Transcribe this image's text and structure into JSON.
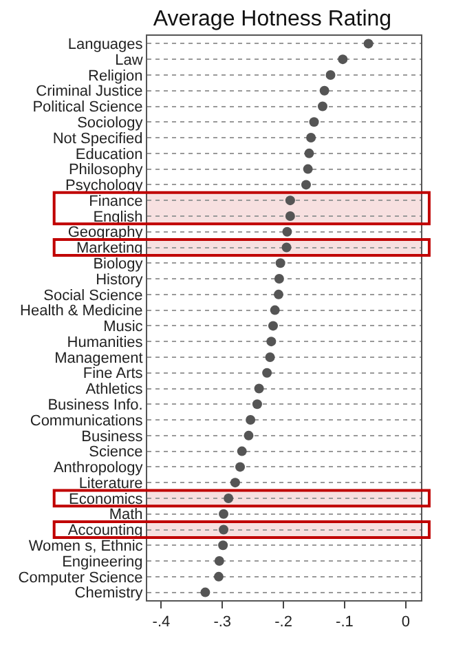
{
  "chart_data": {
    "type": "scatter",
    "title": "Average Hotness Rating",
    "categories": [
      "Languages",
      "Law",
      "Religion",
      "Criminal Justice",
      "Political Science",
      "Sociology",
      "Not Specified",
      "Education",
      "Philosophy",
      "Psychology",
      "Finance",
      "English",
      "Geography",
      "Marketing",
      "Biology",
      "History",
      "Social Science",
      "Health & Medicine",
      "Music",
      "Humanities",
      "Management",
      "Fine Arts",
      "Athletics",
      "Business Info.",
      "Communications",
      "Business",
      "Science",
      "Anthropology",
      "Literature",
      "Economics",
      "Math",
      "Accounting",
      "Women s, Ethnic",
      "Engineering",
      "Computer Science",
      "Chemistry"
    ],
    "orientation": "horizontal",
    "values": [
      -0.061,
      -0.103,
      -0.123,
      -0.133,
      -0.136,
      -0.15,
      -0.155,
      -0.158,
      -0.16,
      -0.163,
      -0.189,
      -0.189,
      -0.194,
      -0.195,
      -0.205,
      -0.207,
      -0.208,
      -0.214,
      -0.217,
      -0.22,
      -0.222,
      -0.227,
      -0.24,
      -0.243,
      -0.254,
      -0.257,
      -0.268,
      -0.271,
      -0.279,
      -0.29,
      -0.298,
      -0.298,
      -0.299,
      -0.305,
      -0.306,
      -0.328
    ],
    "color": "#555555",
    "marker": "circle",
    "xlim": [
      -0.423,
      0.025
    ],
    "xticks": [
      {
        "value": -0.4,
        "label": "-.4"
      },
      {
        "value": -0.3,
        "label": "-.3"
      },
      {
        "value": -0.2,
        "label": "-.2"
      },
      {
        "value": -0.1,
        "label": "-.1"
      },
      {
        "value": 0,
        "label": "0"
      }
    ],
    "grid": "y",
    "line_style": "dotted",
    "bands": [
      {
        "axis": "y",
        "from": "Finance",
        "to": "English",
        "color": "#c00000"
      },
      {
        "axis": "y",
        "from": "Marketing",
        "to": "Marketing",
        "color": "#c00000"
      },
      {
        "axis": "y",
        "from": "Economics",
        "to": "Economics",
        "color": "#c00000"
      },
      {
        "axis": "y",
        "from": "Accounting",
        "to": "Accounting",
        "color": "#c00000"
      }
    ]
  }
}
